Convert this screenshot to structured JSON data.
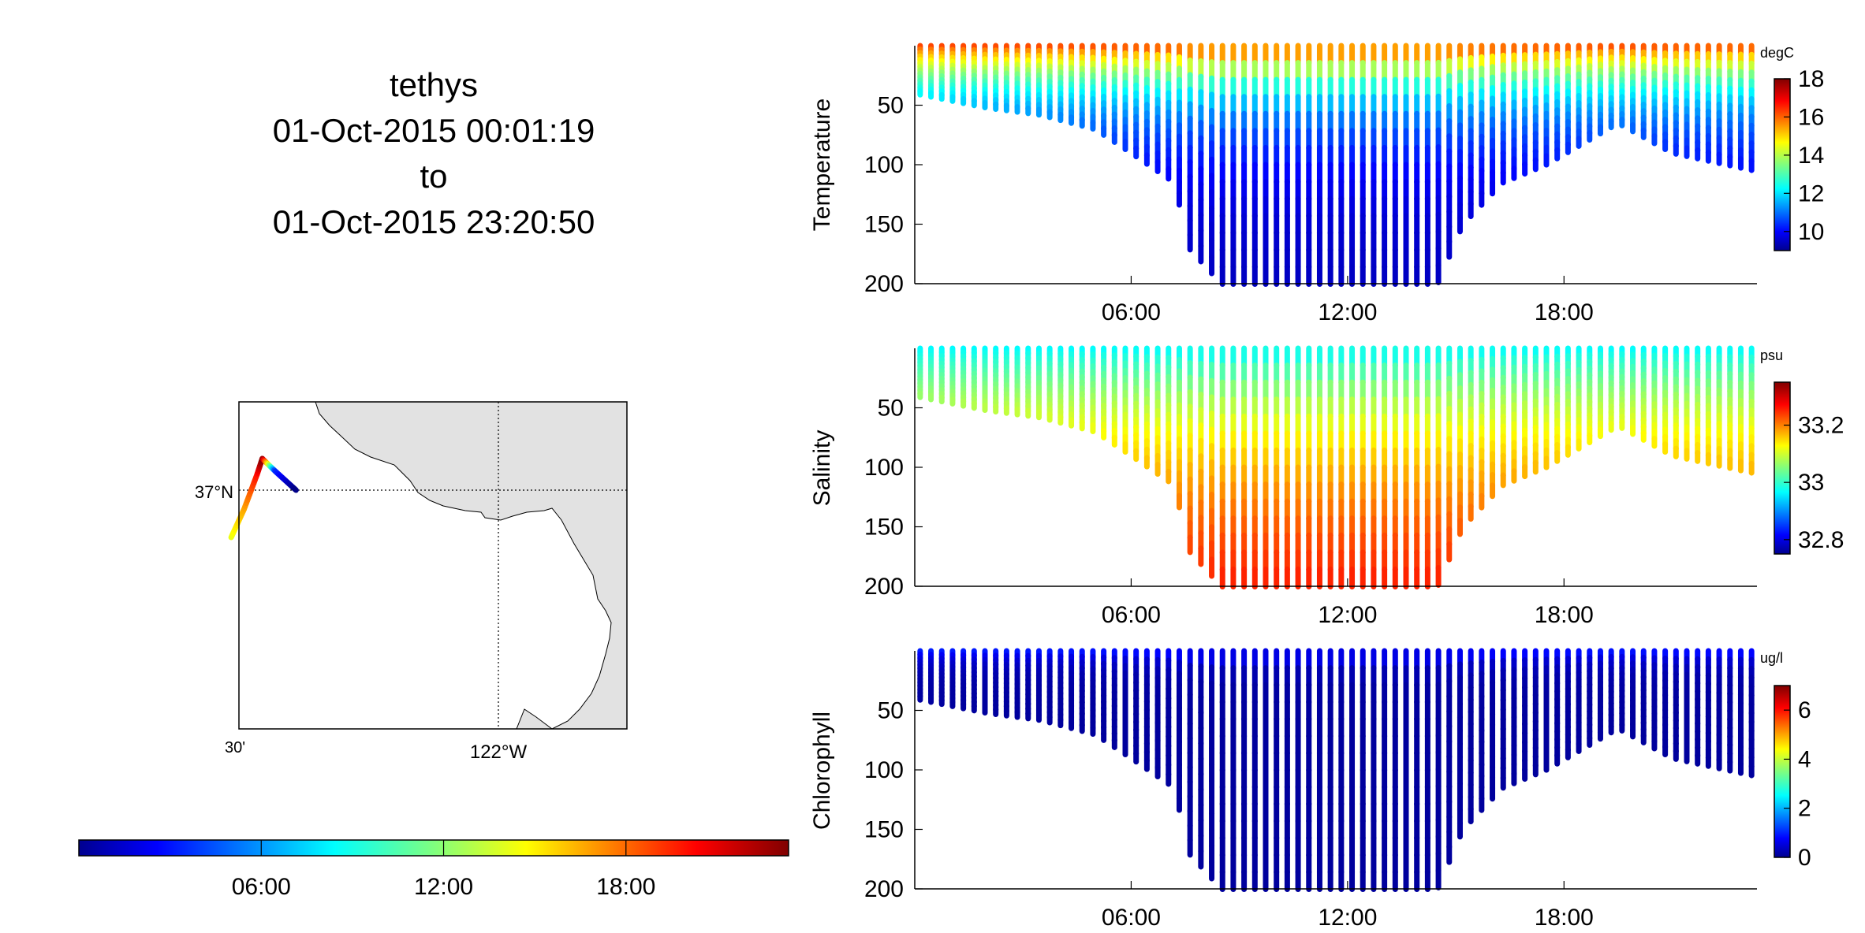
{
  "header": {
    "vehicle": "tethys",
    "start_time": "01-Oct-2015 00:01:19",
    "separator": "to",
    "end_time": "01-Oct-2015 23:20:50"
  },
  "colors": {
    "land": "#e2e2e2",
    "track_early": "#0a1a9a",
    "track_late": "#8b0000",
    "axis": "#000000"
  },
  "chart_data": [
    {
      "type": "map",
      "name": "track-map",
      "lat_label": "37°N",
      "lon_label_left": "30'",
      "lon_label_right": "122°W",
      "grid_lat": 37.0,
      "grid_lon": -122.0,
      "track": [
        {
          "lon": -122.515,
          "lat": 36.925,
          "time_h": 14.0
        },
        {
          "lon": -122.49,
          "lat": 36.97,
          "time_h": 16.5
        },
        {
          "lon": -122.465,
          "lat": 37.025,
          "time_h": 20.0
        },
        {
          "lon": -122.455,
          "lat": 37.05,
          "time_h": 23.3
        },
        {
          "lon": -122.43,
          "lat": 37.03,
          "time_h": 4.0
        },
        {
          "lon": -122.39,
          "lat": 37.0,
          "time_h": 0.0
        }
      ]
    },
    {
      "type": "colorbar",
      "name": "time-colorbar",
      "tick_labels": [
        "06:00",
        "12:00",
        "18:00"
      ],
      "range_hours": [
        0,
        23.35
      ]
    },
    {
      "type": "heatmap",
      "name": "temperature",
      "ylabel": "Temperature",
      "unit": "degC",
      "y_ticks": [
        "50",
        "100",
        "150",
        "200"
      ],
      "x_ticks": [
        "06:00",
        "12:00",
        "18:00"
      ],
      "ylim": [
        200,
        0
      ],
      "clim": [
        9,
        18
      ],
      "cbar_ticks": [
        "18",
        "16",
        "14",
        "12",
        "10"
      ],
      "surface_value": 16.5,
      "deep_value": 9.5,
      "gradient_scale_m": 45,
      "max_depth_profile": [
        [
          0,
          40
        ],
        [
          2,
          52
        ],
        [
          3.5,
          58
        ],
        [
          5,
          70
        ],
        [
          6,
          90
        ],
        [
          7.2,
          115
        ],
        [
          7.6,
          170
        ],
        [
          8.5,
          200
        ],
        [
          14.5,
          200
        ],
        [
          15.2,
          150
        ],
        [
          16.3,
          115
        ],
        [
          17.5,
          100
        ],
        [
          19.5,
          65
        ],
        [
          21,
          90
        ],
        [
          23.3,
          105
        ]
      ]
    },
    {
      "type": "heatmap",
      "name": "salinity",
      "ylabel": "Salinity",
      "unit": "psu",
      "y_ticks": [
        "50",
        "100",
        "150",
        "200"
      ],
      "x_ticks": [
        "06:00",
        "12:00",
        "18:00"
      ],
      "ylim": [
        200,
        0
      ],
      "clim": [
        32.75,
        33.35
      ],
      "cbar_ticks": [
        "33.2",
        "33",
        "32.8"
      ],
      "surface_value": 32.97,
      "deep_value": 33.35,
      "gradient_scale_m": 140,
      "max_depth_profile": [
        [
          0,
          40
        ],
        [
          2,
          52
        ],
        [
          3.5,
          58
        ],
        [
          5,
          70
        ],
        [
          6,
          90
        ],
        [
          7.2,
          115
        ],
        [
          7.6,
          170
        ],
        [
          8.5,
          200
        ],
        [
          14.5,
          200
        ],
        [
          15.2,
          150
        ],
        [
          16.3,
          115
        ],
        [
          17.5,
          100
        ],
        [
          19.5,
          65
        ],
        [
          21,
          90
        ],
        [
          23.3,
          105
        ]
      ]
    },
    {
      "type": "heatmap",
      "name": "chlorophyll",
      "ylabel": "Chlorophyll",
      "unit": "ug/l",
      "y_ticks": [
        "50",
        "100",
        "150",
        "200"
      ],
      "x_ticks": [
        "06:00",
        "12:00",
        "18:00"
      ],
      "ylim": [
        200,
        0
      ],
      "clim": [
        0,
        7
      ],
      "cbar_ticks": [
        "6",
        "4",
        "2",
        "0"
      ],
      "surface_value": 1.2,
      "deep_value": 0.2,
      "gradient_scale_m": 10,
      "max_depth_profile": [
        [
          0,
          40
        ],
        [
          2,
          52
        ],
        [
          3.5,
          58
        ],
        [
          5,
          70
        ],
        [
          6,
          90
        ],
        [
          7.2,
          115
        ],
        [
          7.6,
          170
        ],
        [
          8.5,
          200
        ],
        [
          14.5,
          200
        ],
        [
          15.2,
          150
        ],
        [
          16.3,
          115
        ],
        [
          17.5,
          100
        ],
        [
          19.5,
          65
        ],
        [
          21,
          90
        ],
        [
          23.3,
          105
        ]
      ]
    }
  ]
}
